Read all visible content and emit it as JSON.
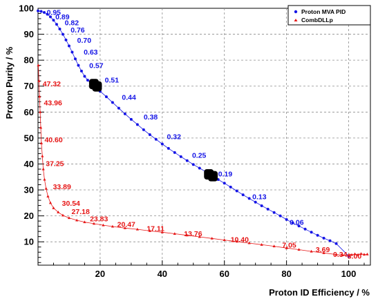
{
  "chart_data": {
    "type": "scatter",
    "xlabel": "Proton ID Efficiency / %",
    "ylabel": "Proton Purity / %",
    "xlim": [
      0,
      107
    ],
    "ylim": [
      1,
      100
    ],
    "x_ticks": [
      "20",
      "40",
      "60",
      "80",
      "100"
    ],
    "y_ticks": [
      "10",
      "20",
      "30",
      "40",
      "50",
      "60",
      "70",
      "80",
      "90",
      "100"
    ],
    "grid": true,
    "legend_position": "top-right",
    "series": [
      {
        "name": "Proton MVA PID",
        "color": "#1515e6",
        "marker": "circle",
        "x": [
          0,
          1,
          2,
          3,
          4,
          5,
          6,
          7,
          8,
          9,
          10,
          11,
          12,
          13,
          14,
          15,
          16,
          17,
          18,
          19,
          20,
          22,
          24,
          26,
          28,
          30,
          32,
          34,
          36,
          38,
          40,
          42,
          44,
          46,
          48,
          50,
          52,
          54,
          55,
          56,
          58,
          60,
          62,
          64,
          66,
          68,
          70,
          72,
          74,
          76,
          78,
          80,
          82,
          84,
          86,
          88,
          90,
          92,
          94,
          96,
          100
        ],
        "y": [
          99,
          98.8,
          98.4,
          97.7,
          96.7,
          95.4,
          93.8,
          92,
          90,
          87.8,
          85.5,
          83.1,
          80.5,
          78,
          75.8,
          73.8,
          72.3,
          71,
          70,
          69.5,
          68,
          65.9,
          63.7,
          61.5,
          59.3,
          57.2,
          55.2,
          53.2,
          51.3,
          49.5,
          47.7,
          46,
          44.4,
          42.8,
          41.3,
          39.8,
          38.4,
          37,
          36.3,
          35.6,
          34,
          32.6,
          31.1,
          29.6,
          28.1,
          26.7,
          25.3,
          23.9,
          22.6,
          21.3,
          20,
          18.6,
          17.3,
          16.1,
          14.9,
          13.7,
          12.5,
          11.4,
          10.4,
          9.3,
          4.5
        ],
        "labels": [
          {
            "text": "0.95",
            "x": 2.8,
            "y": 98.6
          },
          {
            "text": "0.89",
            "x": 5.6,
            "y": 96.8
          },
          {
            "text": "0.82",
            "x": 8.6,
            "y": 94.6
          },
          {
            "text": "0.76",
            "x": 10.5,
            "y": 91.8
          },
          {
            "text": "0.70",
            "x": 12.6,
            "y": 87.8
          },
          {
            "text": "0.63",
            "x": 14.7,
            "y": 83.2
          },
          {
            "text": "0.57",
            "x": 16.5,
            "y": 78
          },
          {
            "text": "0.51",
            "x": 21.5,
            "y": 72.5
          },
          {
            "text": "0.44",
            "x": 27,
            "y": 65.8
          },
          {
            "text": "0.38",
            "x": 34,
            "y": 58.2
          },
          {
            "text": "0.32",
            "x": 41.5,
            "y": 50.6
          },
          {
            "text": "0.25",
            "x": 49.6,
            "y": 43.4
          },
          {
            "text": "0.19",
            "x": 58,
            "y": 36.2
          },
          {
            "text": "0.13",
            "x": 69,
            "y": 27.5
          },
          {
            "text": "0.06",
            "x": 81,
            "y": 17.6
          }
        ]
      },
      {
        "name": "CombDLLp",
        "color": "#e61515",
        "marker": "triangle",
        "x": [
          0.1,
          0.3,
          0.5,
          0.7,
          0.9,
          1.1,
          1.4,
          1.7,
          2.1,
          2.6,
          3.2,
          4,
          5,
          6.5,
          8,
          10,
          12.5,
          15,
          18,
          21,
          24,
          28,
          32,
          36,
          40,
          44,
          48,
          52,
          56,
          60,
          64,
          68,
          72,
          76,
          80,
          84,
          88,
          92,
          96,
          98,
          100,
          101,
          102,
          103,
          104,
          105,
          106
        ],
        "y": [
          78,
          72,
          66,
          60,
          54,
          48,
          43,
          38,
          34,
          30.5,
          27.5,
          25,
          23,
          21.4,
          20.2,
          19.2,
          18.3,
          17.6,
          17,
          16.4,
          15.9,
          15.3,
          14.8,
          14.2,
          13.7,
          13.1,
          12.5,
          11.9,
          11.3,
          10.7,
          10.1,
          9.5,
          8.9,
          8.3,
          7.6,
          7,
          6.3,
          5.7,
          5.1,
          4.9,
          4.7,
          5,
          5.3,
          5,
          5.4,
          5.1,
          5.2
        ],
        "labels": [
          {
            "text": "47.32",
            "x": 1.5,
            "y": 71
          },
          {
            "text": "43.96",
            "x": 1.9,
            "y": 63.7
          },
          {
            "text": "40.60",
            "x": 2.1,
            "y": 49.5
          },
          {
            "text": "37.25",
            "x": 2.5,
            "y": 40.3
          },
          {
            "text": "33.89",
            "x": 4.8,
            "y": 31.3
          },
          {
            "text": "30.54",
            "x": 7.7,
            "y": 25
          },
          {
            "text": "27.18",
            "x": 10.8,
            "y": 21.8
          },
          {
            "text": "23.83",
            "x": 16.7,
            "y": 18.9
          },
          {
            "text": "20.47",
            "x": 25.5,
            "y": 16.9
          },
          {
            "text": "17.11",
            "x": 35,
            "y": 15.2
          },
          {
            "text": "13.76",
            "x": 47,
            "y": 13.2
          },
          {
            "text": "10.40",
            "x": 62,
            "y": 11
          },
          {
            "text": "7.05",
            "x": 78.6,
            "y": 8.8
          },
          {
            "text": "3.69",
            "x": 89.4,
            "y": 7.1
          },
          {
            "text": "0.34",
            "x": 95,
            "y": 5.2
          },
          {
            "text": "3.00",
            "x": 99.6,
            "y": 4.6
          }
        ]
      }
    ],
    "highlight_markers": [
      {
        "x": 18,
        "y": 70.8
      },
      {
        "x": 19,
        "y": 69.9
      },
      {
        "x": 55,
        "y": 36
      },
      {
        "x": 56.3,
        "y": 35.3
      }
    ],
    "highlight_color": "#000000"
  }
}
